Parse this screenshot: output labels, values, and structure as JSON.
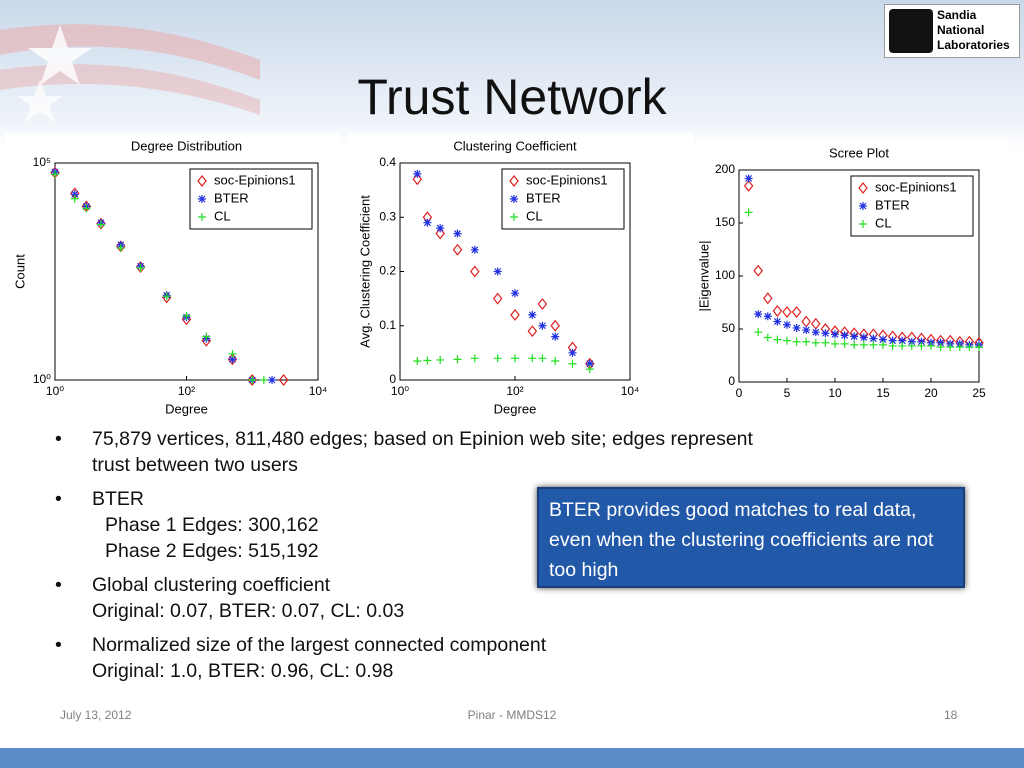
{
  "title": "Trust Network",
  "logo": {
    "lines": [
      "Sandia",
      "National",
      "Laboratories"
    ]
  },
  "chart_data": [
    {
      "type": "scatter",
      "title": "Degree Distribution",
      "xlabel": "Degree",
      "ylabel": "Count",
      "xscale": "log",
      "yscale": "log",
      "xlim": [
        1,
        10000
      ],
      "ylim": [
        1,
        100000
      ],
      "xticks": [
        {
          "value": 1,
          "label": "10⁰"
        },
        {
          "value": 100,
          "label": "10²"
        },
        {
          "value": 10000,
          "label": "10⁴"
        }
      ],
      "yticks": [
        {
          "value": 1,
          "label": "10⁰"
        },
        {
          "value": 100000,
          "label": "10⁵"
        }
      ],
      "legend": "upper right",
      "series": [
        {
          "name": "soc-Epinions1",
          "color": "#e02020",
          "marker": "diamond",
          "x": [
            1,
            2,
            3,
            5,
            10,
            20,
            50,
            100,
            200,
            500,
            1000,
            3000
          ],
          "values": [
            60000,
            20000,
            10000,
            4000,
            1200,
            400,
            80,
            25,
            8,
            3,
            1,
            1
          ]
        },
        {
          "name": "BTER",
          "color": "#2030e0",
          "marker": "star",
          "x": [
            1,
            2,
            3,
            5,
            10,
            20,
            50,
            100,
            200,
            500,
            1000,
            2000
          ],
          "values": [
            62000,
            19000,
            10000,
            4200,
            1300,
            420,
            90,
            28,
            9,
            3,
            1,
            1
          ]
        },
        {
          "name": "CL",
          "color": "#20e020",
          "marker": "plus",
          "x": [
            1,
            2,
            3,
            5,
            10,
            20,
            50,
            100,
            200,
            500,
            1000,
            1500
          ],
          "values": [
            55000,
            15000,
            9000,
            3800,
            1100,
            380,
            85,
            30,
            10,
            4,
            1,
            1
          ]
        }
      ]
    },
    {
      "type": "scatter",
      "title": "Clustering Coefficient",
      "xlabel": "Degree",
      "ylabel": "Avg. Clustering Coefficient",
      "xscale": "log",
      "yscale": "linear",
      "xlim": [
        1,
        10000
      ],
      "ylim": [
        0,
        0.4
      ],
      "xticks": [
        {
          "value": 1,
          "label": "10⁰"
        },
        {
          "value": 100,
          "label": "10²"
        },
        {
          "value": 10000,
          "label": "10⁴"
        }
      ],
      "yticks": [
        0,
        0.1,
        0.2,
        0.3,
        0.4
      ],
      "legend": "upper right",
      "series": [
        {
          "name": "soc-Epinions1",
          "color": "#e02020",
          "marker": "diamond",
          "x": [
            2,
            3,
            5,
            10,
            20,
            50,
            100,
            200,
            300,
            500,
            1000,
            2000
          ],
          "values": [
            0.37,
            0.3,
            0.27,
            0.24,
            0.2,
            0.15,
            0.12,
            0.09,
            0.14,
            0.1,
            0.06,
            0.03
          ]
        },
        {
          "name": "BTER",
          "color": "#2030e0",
          "marker": "star",
          "x": [
            2,
            3,
            5,
            10,
            20,
            50,
            100,
            200,
            300,
            500,
            1000,
            2000
          ],
          "values": [
            0.38,
            0.29,
            0.28,
            0.27,
            0.24,
            0.2,
            0.16,
            0.12,
            0.1,
            0.08,
            0.05,
            0.03
          ]
        },
        {
          "name": "CL",
          "color": "#20e020",
          "marker": "plus",
          "x": [
            2,
            3,
            5,
            10,
            20,
            50,
            100,
            200,
            300,
            500,
            1000,
            2000
          ],
          "values": [
            0.035,
            0.036,
            0.037,
            0.038,
            0.04,
            0.04,
            0.04,
            0.04,
            0.04,
            0.035,
            0.03,
            0.02
          ]
        }
      ]
    },
    {
      "type": "scatter",
      "title": "Scree Plot",
      "ylabel": "|Eigenvalue|",
      "xscale": "linear",
      "yscale": "linear",
      "xlim": [
        0,
        25
      ],
      "ylim": [
        0,
        200
      ],
      "xticks": [
        0,
        5,
        10,
        15,
        20,
        25
      ],
      "yticks": [
        0,
        50,
        100,
        150,
        200
      ],
      "legend": "upper right",
      "series": [
        {
          "name": "soc-Epinions1",
          "color": "#e02020",
          "marker": "diamond",
          "x": [
            1,
            2,
            3,
            4,
            5,
            6,
            7,
            8,
            9,
            10,
            11,
            12,
            13,
            14,
            15,
            16,
            17,
            18,
            19,
            20,
            21,
            22,
            23,
            24,
            25
          ],
          "values": [
            185,
            105,
            79,
            67,
            66,
            66,
            57,
            55,
            50,
            48,
            47,
            46,
            45,
            45,
            44,
            43,
            42,
            42,
            41,
            40,
            39,
            39,
            38,
            38,
            37
          ]
        },
        {
          "name": "BTER",
          "color": "#2030e0",
          "marker": "star",
          "x": [
            1,
            2,
            3,
            4,
            5,
            6,
            7,
            8,
            9,
            10,
            11,
            12,
            13,
            14,
            15,
            16,
            17,
            18,
            19,
            20,
            21,
            22,
            23,
            24,
            25
          ],
          "values": [
            192,
            64,
            62,
            57,
            54,
            51,
            49,
            47,
            46,
            45,
            44,
            43,
            42,
            41,
            40,
            39,
            39,
            38,
            38,
            37,
            37,
            36,
            36,
            35,
            35
          ]
        },
        {
          "name": "CL",
          "color": "#20e020",
          "marker": "plus",
          "x": [
            1,
            2,
            3,
            4,
            5,
            6,
            7,
            8,
            9,
            10,
            11,
            12,
            13,
            14,
            15,
            16,
            17,
            18,
            19,
            20,
            21,
            22,
            23,
            24,
            25
          ],
          "values": [
            160,
            47,
            42,
            40,
            39,
            38,
            38,
            37,
            37,
            36,
            36,
            35,
            35,
            35,
            35,
            34,
            34,
            34,
            34,
            34,
            33,
            33,
            33,
            33,
            33
          ]
        }
      ]
    }
  ],
  "bullets": [
    {
      "lines": [
        "75,879 vertices, 811,480 edges; based on Epinion web site; edges represent",
        "trust between two users"
      ]
    },
    {
      "lines": [
        "BTER",
        "Phase 1 Edges: 300,162",
        "Phase 2 Edges: 515,192"
      ]
    },
    {
      "lines": [
        "Global clustering coefficient",
        "Original: 0.07, BTER: 0.07, CL: 0.03"
      ]
    },
    {
      "lines": [
        "Normalized size of the largest connected component",
        "Original: 1.0, BTER: 0.96, CL: 0.98"
      ]
    }
  ],
  "callout": "BTER provides  good matches to real data, even when the clustering coefficients are not  too high",
  "footer": {
    "date": "July 13, 2012",
    "center": "Pinar - MMDS12",
    "page": "18"
  }
}
